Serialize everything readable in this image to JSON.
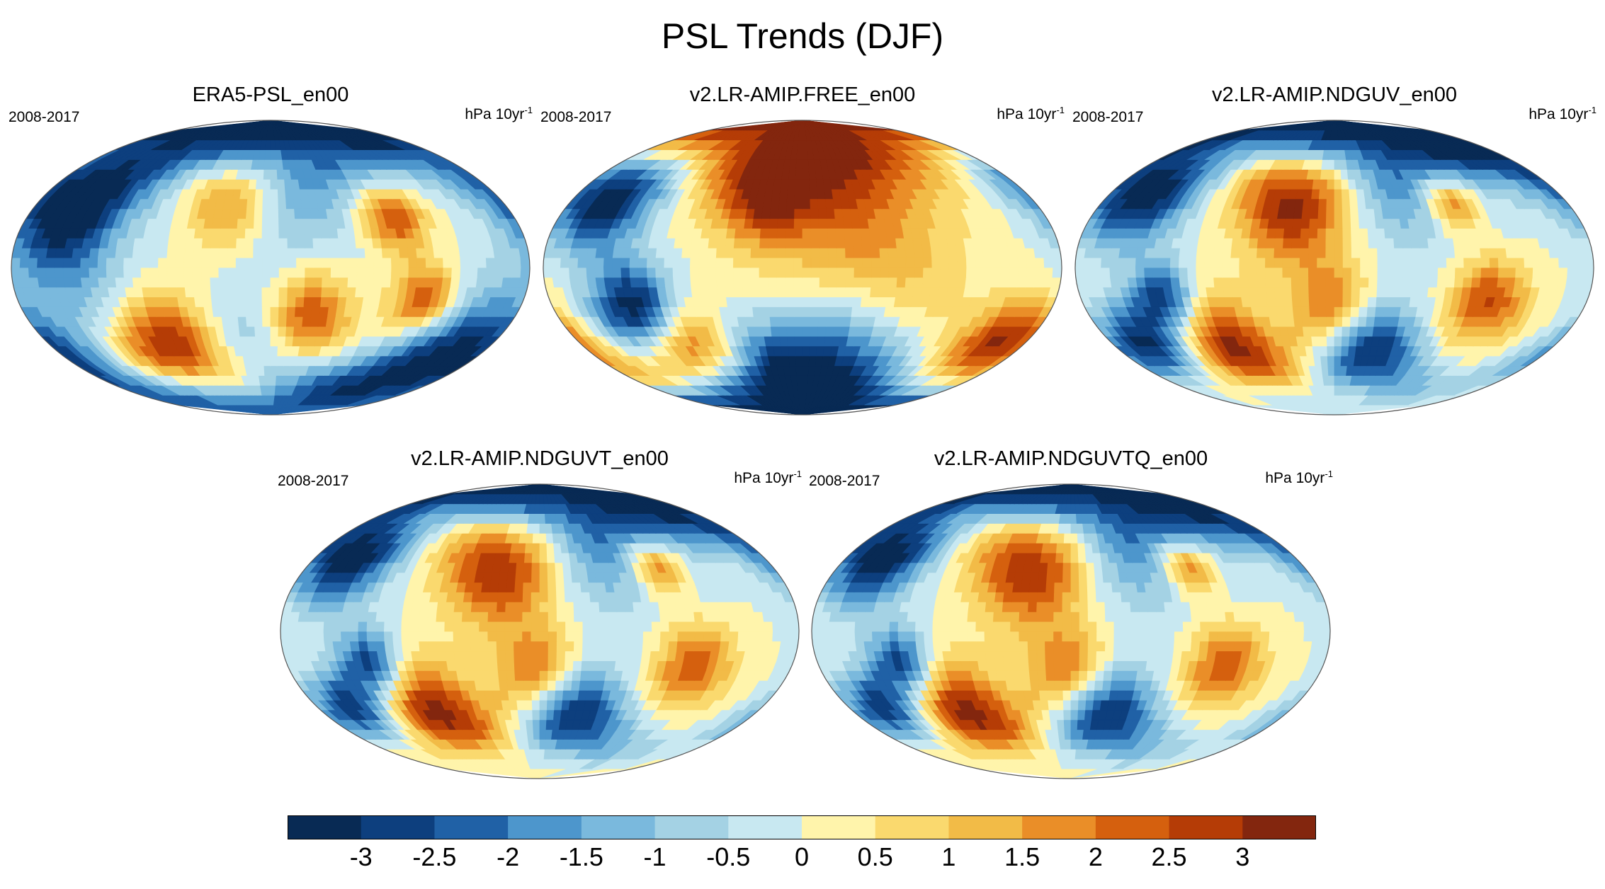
{
  "title": "PSL Trends (DJF)",
  "panels": [
    {
      "title": "ERA5-PSL_en00",
      "period": "2008-2017",
      "units": "hPa 10yr",
      "units_exp": "-1",
      "blobs": [
        {
          "lon": -150,
          "lat": 40,
          "r": 24,
          "v": -3.5
        },
        {
          "lon": -80,
          "lat": -50,
          "r": 22,
          "v": 3.5
        },
        {
          "lon": -30,
          "lat": 45,
          "r": 22,
          "v": 3.2
        },
        {
          "lon": 110,
          "lat": -20,
          "r": 16,
          "v": 2.8
        },
        {
          "lon": 90,
          "lat": 30,
          "r": 14,
          "v": 2.6
        },
        {
          "lon": 30,
          "lat": -30,
          "r": 18,
          "v": 2.6
        },
        {
          "lon": 0,
          "lat": 82,
          "r": 40,
          "v": -3.5
        },
        {
          "lon": 150,
          "lat": -60,
          "r": 30,
          "v": -3.5
        },
        {
          "lon": -140,
          "lat": 0,
          "r": 30,
          "v": -1.2
        },
        {
          "lon": -20,
          "lat": -60,
          "r": 25,
          "v": -1.5
        }
      ]
    },
    {
      "title": "v2.LR-AMIP.FREE_en00",
      "period": "2008-2017",
      "units": "hPa 10yr",
      "units_exp": "-1",
      "blobs": [
        {
          "lon": 0,
          "lat": 80,
          "r": 45,
          "v": 3.5
        },
        {
          "lon": -150,
          "lat": 42,
          "r": 22,
          "v": -3.5
        },
        {
          "lon": -120,
          "lat": -25,
          "r": 20,
          "v": -3.5
        },
        {
          "lon": -90,
          "lat": -50,
          "r": 18,
          "v": 3.4
        },
        {
          "lon": 160,
          "lat": -45,
          "r": 18,
          "v": 3.0
        },
        {
          "lon": -30,
          "lat": 40,
          "r": 16,
          "v": 1.5
        },
        {
          "lon": 30,
          "lat": -60,
          "r": 30,
          "v": -2.8
        },
        {
          "lon": -40,
          "lat": -70,
          "r": 25,
          "v": -2.5
        },
        {
          "lon": 60,
          "lat": 0,
          "r": 40,
          "v": 1.2
        }
      ]
    },
    {
      "title": "v2.LR-AMIP.NDGUV_en00",
      "period": "2008-2017",
      "units": "hPa 10yr",
      "units_exp": "-1",
      "blobs": [
        {
          "lon": -150,
          "lat": 45,
          "r": 22,
          "v": -3.5
        },
        {
          "lon": -30,
          "lat": 40,
          "r": 25,
          "v": 3.4
        },
        {
          "lon": -90,
          "lat": -50,
          "r": 22,
          "v": 3.5
        },
        {
          "lon": 30,
          "lat": -50,
          "r": 20,
          "v": -3.5
        },
        {
          "lon": -150,
          "lat": -50,
          "r": 18,
          "v": -3.5
        },
        {
          "lon": 110,
          "lat": -20,
          "r": 18,
          "v": 2.6
        },
        {
          "lon": 90,
          "lat": 40,
          "r": 12,
          "v": 3.0
        },
        {
          "lon": 60,
          "lat": 80,
          "r": 35,
          "v": -3.5
        },
        {
          "lon": -120,
          "lat": -20,
          "r": 15,
          "v": -3.0
        },
        {
          "lon": 0,
          "lat": -25,
          "r": 20,
          "v": 2.2
        }
      ]
    },
    {
      "title": "v2.LR-AMIP.NDGUVT_en00",
      "period": "2008-2017",
      "units": "hPa 10yr",
      "units_exp": "-1",
      "blobs": [
        {
          "lon": -150,
          "lat": 45,
          "r": 20,
          "v": -3.5
        },
        {
          "lon": -30,
          "lat": 40,
          "r": 25,
          "v": 3.2
        },
        {
          "lon": -90,
          "lat": -50,
          "r": 22,
          "v": 3.5
        },
        {
          "lon": 30,
          "lat": -50,
          "r": 20,
          "v": -3.5
        },
        {
          "lon": -150,
          "lat": -50,
          "r": 16,
          "v": -3.2
        },
        {
          "lon": 110,
          "lat": -20,
          "r": 18,
          "v": 2.4
        },
        {
          "lon": 90,
          "lat": 40,
          "r": 12,
          "v": 3.0
        },
        {
          "lon": 60,
          "lat": 80,
          "r": 35,
          "v": -3.5
        },
        {
          "lon": -120,
          "lat": -20,
          "r": 15,
          "v": -3.0
        },
        {
          "lon": 0,
          "lat": -25,
          "r": 20,
          "v": 2.2
        }
      ]
    },
    {
      "title": "v2.LR-AMIP.NDGUVTQ_en00",
      "period": "2008-2017",
      "units": "hPa 10yr",
      "units_exp": "-1",
      "blobs": [
        {
          "lon": -150,
          "lat": 45,
          "r": 20,
          "v": -3.5
        },
        {
          "lon": -30,
          "lat": 40,
          "r": 25,
          "v": 3.2
        },
        {
          "lon": -90,
          "lat": -50,
          "r": 22,
          "v": 3.5
        },
        {
          "lon": 30,
          "lat": -50,
          "r": 20,
          "v": -3.5
        },
        {
          "lon": -150,
          "lat": -50,
          "r": 16,
          "v": -3.2
        },
        {
          "lon": 110,
          "lat": -20,
          "r": 18,
          "v": 2.4
        },
        {
          "lon": 90,
          "lat": 40,
          "r": 12,
          "v": 3.0
        },
        {
          "lon": 60,
          "lat": 80,
          "r": 35,
          "v": -3.5
        },
        {
          "lon": -120,
          "lat": -20,
          "r": 15,
          "v": -3.0
        },
        {
          "lon": 0,
          "lat": -25,
          "r": 20,
          "v": 2.2
        }
      ]
    }
  ],
  "colorbar": {
    "colors": [
      "#082a54",
      "#0d3f7e",
      "#2061a6",
      "#4d96cc",
      "#7ab9dd",
      "#a4d2e4",
      "#c8e8f1",
      "#fff4ab",
      "#fad96e",
      "#f2bb47",
      "#ea8e28",
      "#d5600e",
      "#b53c06",
      "#83260e"
    ],
    "labels": [
      "-3",
      "-2.5",
      "-2",
      "-1.5",
      "-1",
      "-0.5",
      "0",
      "0.5",
      "1",
      "1.5",
      "2",
      "2.5",
      "3"
    ],
    "levels": [
      -3,
      -2.5,
      -2,
      -1.5,
      -1,
      -0.5,
      0,
      0.5,
      1,
      1.5,
      2,
      2.5,
      3
    ]
  }
}
